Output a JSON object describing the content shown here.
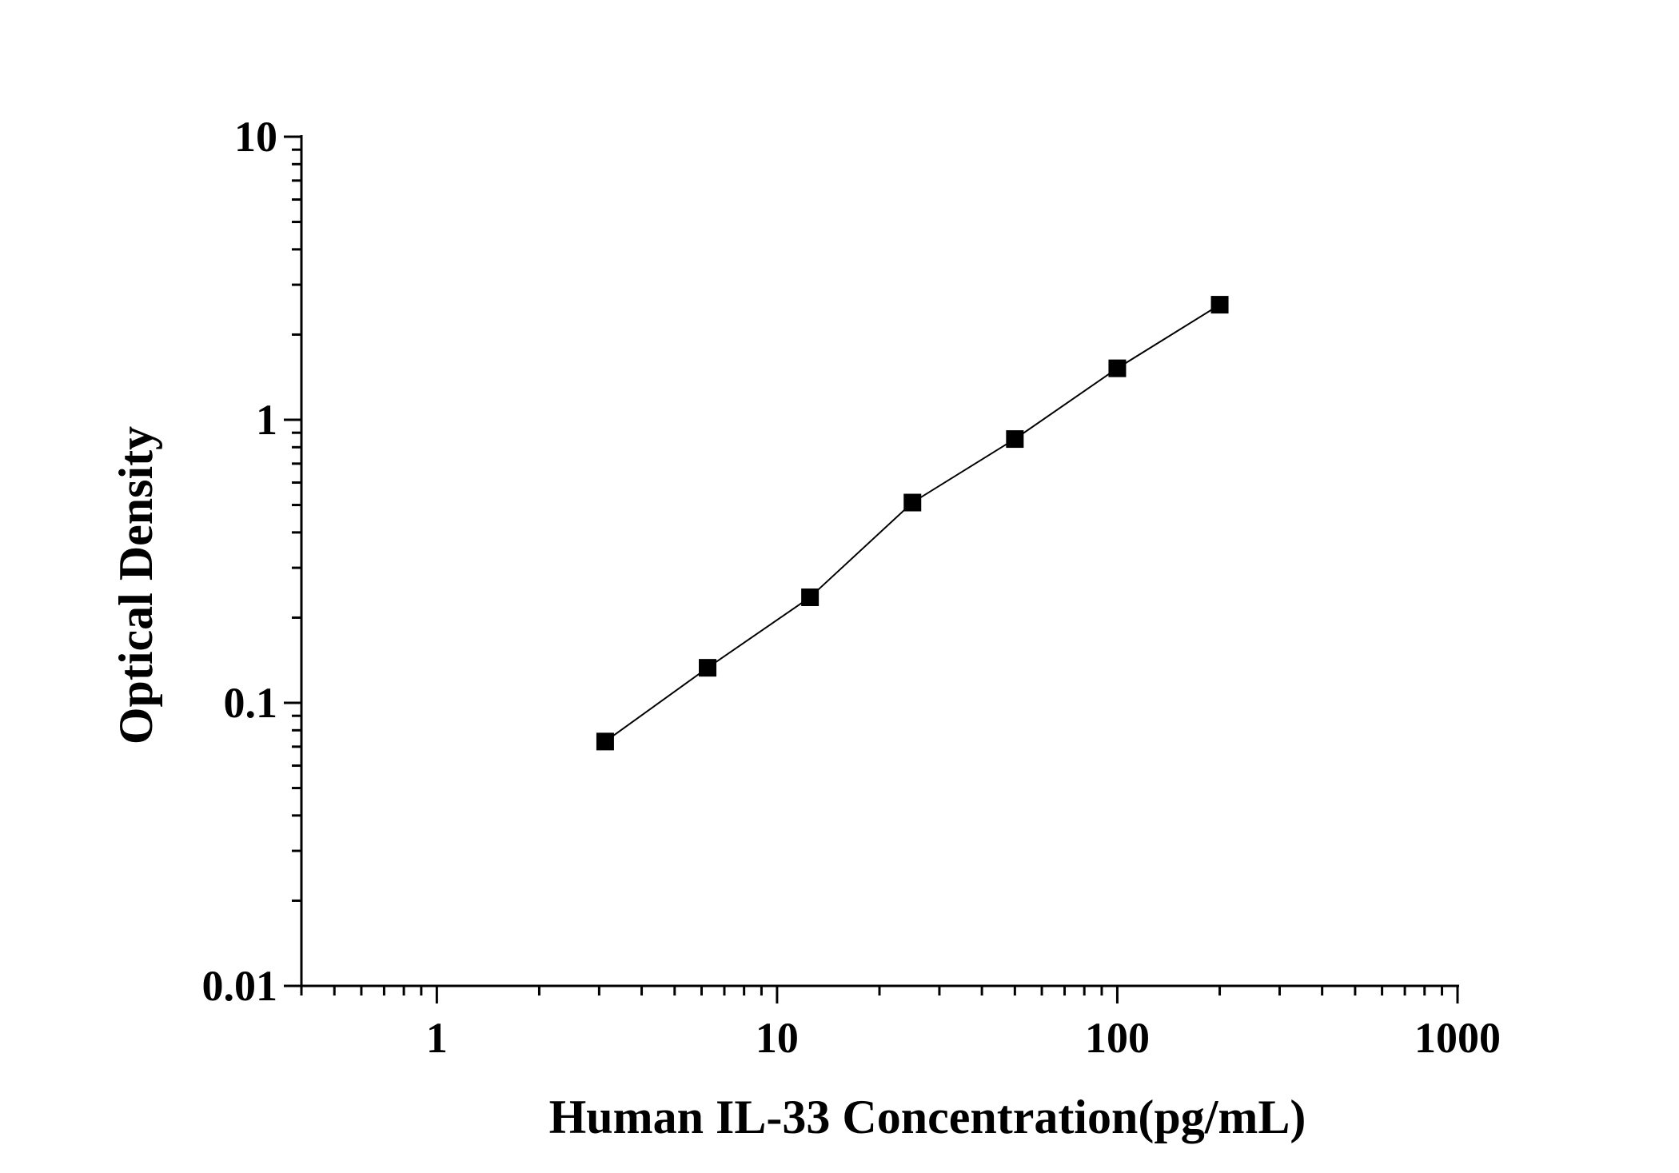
{
  "chart_data": {
    "type": "scatter",
    "xlabel": "Human IL-33 Concentration(pg/mL)",
    "ylabel": "Optical Density",
    "x_scale": "log",
    "y_scale": "log",
    "xlim": [
      0.4,
      1000
    ],
    "ylim": [
      0.01,
      10
    ],
    "x_ticks": [
      1,
      10,
      100,
      1000
    ],
    "x_tick_labels": [
      "1",
      "10",
      "100",
      "1000"
    ],
    "y_ticks": [
      0.01,
      0.1,
      1,
      10
    ],
    "y_tick_labels": [
      "0.01",
      "0.1",
      "1",
      "10"
    ],
    "grid": false,
    "legend": "none",
    "series": [
      {
        "marker": "square",
        "color": "#000000",
        "fit_line": true,
        "x": [
          3.125,
          6.25,
          12.5,
          25,
          50,
          100,
          200
        ],
        "y": [
          0.073,
          0.133,
          0.236,
          0.51,
          0.855,
          1.52,
          2.55
        ]
      }
    ]
  }
}
